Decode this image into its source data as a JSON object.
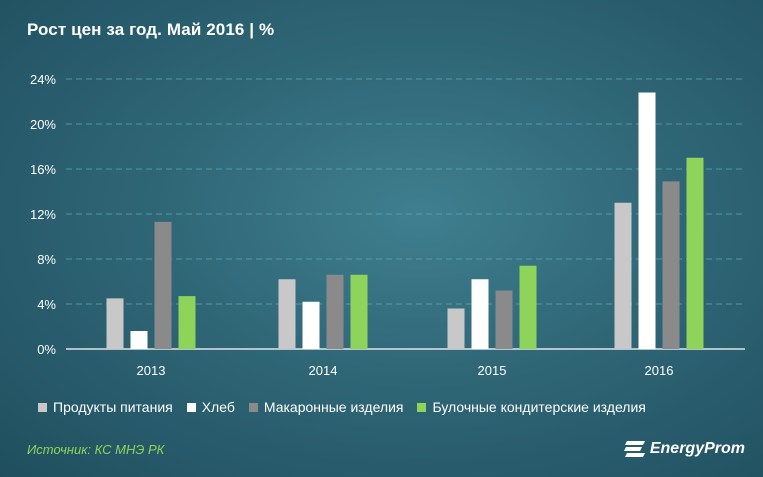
{
  "title": "Рост цен за год. Май 2016 | %",
  "source": "Источник: КС МНЭ РК",
  "brand": "EnergyProm",
  "colors": {
    "background": "#2f6676",
    "grid": "#5fa9b8",
    "axis": "#ffffff"
  },
  "chart_data": {
    "type": "bar",
    "categories": [
      "2013",
      "2014",
      "2015",
      "2016"
    ],
    "series": [
      {
        "name": "Продукты питания",
        "color": "#c8c8c8",
        "values": [
          4.5,
          6.2,
          3.6,
          13.0
        ]
      },
      {
        "name": "Хлеб",
        "color": "#ffffff",
        "values": [
          1.6,
          4.2,
          6.2,
          22.8
        ]
      },
      {
        "name": "Макаронные изделия",
        "color": "#8a8a8a",
        "values": [
          11.3,
          6.6,
          5.2,
          14.9
        ]
      },
      {
        "name": "Булочные кондитерские изделия",
        "color": "#8fd45a",
        "values": [
          4.7,
          6.6,
          7.4,
          17.0
        ]
      }
    ],
    "yticks": [
      "0%",
      "4%",
      "8%",
      "12%",
      "16%",
      "20%",
      "24%"
    ],
    "ylim": [
      0,
      24
    ],
    "grid": true,
    "legend": "bottom"
  }
}
